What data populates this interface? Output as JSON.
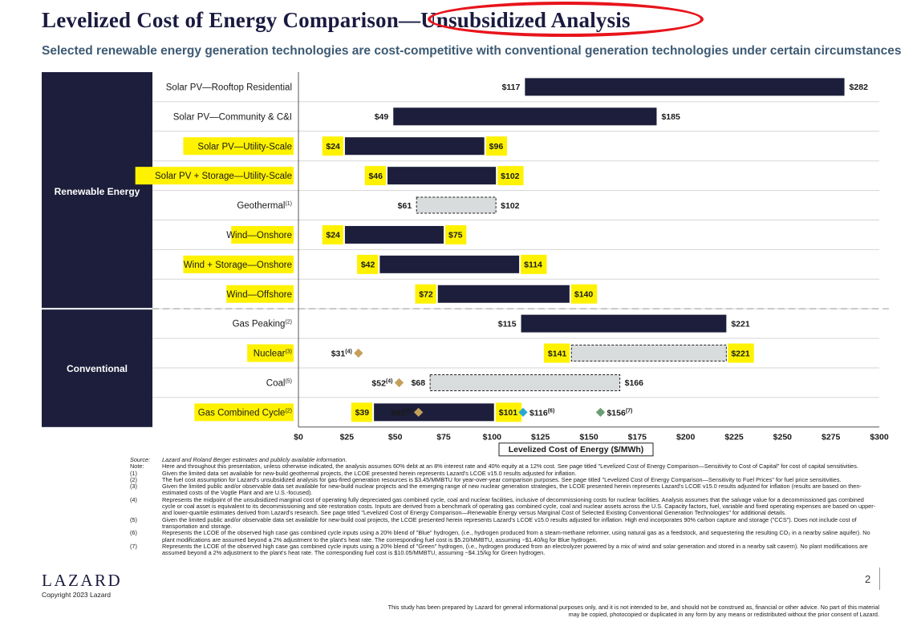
{
  "header": {
    "title": "Levelized Cost of Energy Comparison—Unsubsidized Analysis",
    "subtitle": "Selected renewable energy generation technologies are cost-competitive with conventional generation technologies under certain circumstances"
  },
  "colors": {
    "bar": "#1c1e3b",
    "range_fill": "#d9dcdd",
    "highlight": "#fff200",
    "group_bg": "#1c1e3b",
    "annotation_circle": "#e8141b",
    "gold": "#c5a05a",
    "blue": "#2aa7d6",
    "green": "#6b9e72"
  },
  "chart_data": {
    "type": "bar",
    "orientation": "horizontal-floating-range",
    "xlabel": "Levelized Cost of Energy ($/MWh)",
    "xlim": [
      0,
      300
    ],
    "xticks": [
      "$0",
      "$25",
      "$50",
      "$75",
      "$100",
      "$125",
      "$150",
      "$175",
      "$200",
      "$225",
      "$250",
      "$275",
      "$300"
    ],
    "groups": [
      {
        "name": "Renewable Energy",
        "rows": [
          0,
          7
        ]
      },
      {
        "name": "Conventional",
        "rows": [
          8,
          11
        ]
      }
    ],
    "rows": [
      {
        "category": "Solar PV—Rooftop Residential",
        "sup": "",
        "low": 117,
        "high": 282,
        "low_label": "$117",
        "high_label": "$282",
        "style": "solid",
        "highlight": false
      },
      {
        "category": "Solar PV—Community & C&I",
        "sup": "",
        "low": 49,
        "high": 185,
        "low_label": "$49",
        "high_label": "$185",
        "style": "solid",
        "highlight": false
      },
      {
        "category": "Solar PV—Utility-Scale",
        "sup": "",
        "low": 24,
        "high": 96,
        "low_label": "$24",
        "high_label": "$96",
        "style": "solid",
        "highlight": true
      },
      {
        "category": "Solar PV + Storage—Utility-Scale",
        "sup": "",
        "low": 46,
        "high": 102,
        "low_label": "$46",
        "high_label": "$102",
        "style": "solid",
        "highlight": true
      },
      {
        "category": "Geothermal",
        "sup": "(1)",
        "low": 61,
        "high": 102,
        "low_label": "$61",
        "high_label": "$102",
        "style": "dashed",
        "highlight": false
      },
      {
        "category": "Wind—Onshore",
        "sup": "",
        "low": 24,
        "high": 75,
        "low_label": "$24",
        "high_label": "$75",
        "style": "solid",
        "highlight": true
      },
      {
        "category": "Wind + Storage—Onshore",
        "sup": "",
        "low": 42,
        "high": 114,
        "low_label": "$42",
        "high_label": "$114",
        "style": "solid",
        "highlight": true
      },
      {
        "category": "Wind—Offshore",
        "sup": "",
        "low": 72,
        "high": 140,
        "low_label": "$72",
        "high_label": "$140",
        "style": "solid",
        "highlight": true
      },
      {
        "category": "Gas Peaking",
        "sup": "(2)",
        "low": 115,
        "high": 221,
        "low_label": "$115",
        "high_label": "$221",
        "style": "solid",
        "highlight": false
      },
      {
        "category": "Nuclear",
        "sup": "(3)",
        "low": 141,
        "high": 221,
        "low_label": "$141",
        "high_label": "$221",
        "style": "dashed",
        "highlight": true
      },
      {
        "category": "Coal",
        "sup": "(5)",
        "low": 68,
        "high": 166,
        "low_label": "$68",
        "high_label": "$166",
        "style": "dashed",
        "highlight": false
      },
      {
        "category": "Gas Combined Cycle",
        "sup": "(2)",
        "low": 39,
        "high": 101,
        "low_label": "$39",
        "high_label": "$101",
        "style": "solid",
        "highlight": true
      }
    ],
    "markers": [
      {
        "row": 9,
        "value": 31,
        "label": "$31",
        "sup": "(4)",
        "color": "gold"
      },
      {
        "row": 10,
        "value": 52,
        "label": "$52",
        "sup": "(4)",
        "color": "gold"
      },
      {
        "row": 11,
        "value": 62,
        "label": "$62",
        "sup": "(4)",
        "color": "gold"
      },
      {
        "row": 11,
        "value": 116,
        "label": "$116",
        "sup": "(6)",
        "color": "blue"
      },
      {
        "row": 11,
        "value": 156,
        "label": "$156",
        "sup": "(7)",
        "color": "green"
      }
    ]
  },
  "footnotes": [
    {
      "key": "Source:",
      "text": "Lazard and Roland Berger estimates and publicly available information.",
      "italic": true
    },
    {
      "key": "Note:",
      "text": "Here and throughout this presentation, unless otherwise indicated, the analysis assumes 60% debt at an 8% interest rate and 40% equity at a 12% cost. See page titled \"Levelized Cost of Energy Comparison—Sensitivity to Cost of Capital\" for cost of capital sensitivities.",
      "italic": false
    },
    {
      "key": "(1)",
      "text": "Given the limited data set available for new-build geothermal projects, the LCOE presented herein represents Lazard's LCOE v15.0 results adjusted for inflation.",
      "italic": false
    },
    {
      "key": "(2)",
      "text": "The fuel cost assumption for Lazard's unsubsidized analysis for gas-fired generation resources is $3.45/MMBTU for year-over-year comparison purposes. See page titled \"Levelized Cost of Energy Comparison—Sensitivity to Fuel Prices\" for fuel price sensitivities.",
      "italic": false
    },
    {
      "key": "(3)",
      "text": "Given the limited public and/or observable data set available for new-build nuclear projects and the emerging range of new nuclear generation strategies, the LCOE presented herein represents Lazard's LCOE v15.0 results adjusted for inflation (results are based on then-estimated costs of the Vogtle Plant and are U.S.-focused).",
      "italic": false
    },
    {
      "key": "(4)",
      "text": "Represents the midpoint of the unsubsidized marginal cost of operating fully depreciated gas combined cycle, coal and nuclear facilities, inclusive of decommissioning costs for nuclear facilities. Analysis assumes that the salvage value for a decommissioned gas combined cycle or coal asset is equivalent to its decommissioning and site restoration costs. Inputs are derived from a benchmark of operating gas combined cycle, coal and nuclear assets across the U.S. Capacity factors, fuel, variable and fixed operating expenses are based on upper- and lower-quartile estimates derived from Lazard's research. See page titled \"Levelized Cost of Energy Comparison—Renewable Energy versus Marginal Cost of Selected Existing Conventional Generation Technologies\" for additional details.",
      "italic": false
    },
    {
      "key": "(5)",
      "text": "Given the limited public and/or observable data set available for new-build coal projects, the LCOE presented herein represents Lazard's LCOE v15.0 results adjusted for inflation. High end incorporates 90% carbon capture and storage (\"CCS\"). Does not include cost of transportation and storage.",
      "italic": false
    },
    {
      "key": "(6)",
      "text": "Represents the LCOE of the observed high case gas combined cycle inputs using a 20% blend of \"Blue\" hydrogen, (i.e., hydrogen produced from a steam-methane reformer, using natural gas as a feedstock, and sequestering the resulting CO₂ in a nearby saline aquifer). No plant modifications are assumed beyond a 2% adjustment to the plant's heat rate. The corresponding fuel cost is $5.20/MMBTU, assuming ~$1.40/kg for Blue hydrogen.",
      "italic": false
    },
    {
      "key": "(7)",
      "text": "Represents the LCOE of the observed high case gas combined cycle inputs using a 20% blend of \"Green\" hydrogen, (i.e., hydrogen produced from an electrolyzer powered by a mix of wind and solar generation and stored in a nearby salt cavern). No plant modifications are assumed beyond a 2% adjustment to the plant's heat rate. The corresponding fuel cost is $10.05/MMBTU, assuming ~$4.15/kg for Green hydrogen.",
      "italic": false
    }
  ],
  "disclaimer": "This study has been prepared by Lazard for general informational purposes only, and it is not intended to be, and should not be construed as, financial or other advice. No part of this material may be copied, photocopied or duplicated in any form by any means or redistributed without the prior consent of Lazard.",
  "footer": {
    "logo": "LAZARD",
    "copyright": "Copyright 2023 Lazard",
    "page_number": "2"
  }
}
